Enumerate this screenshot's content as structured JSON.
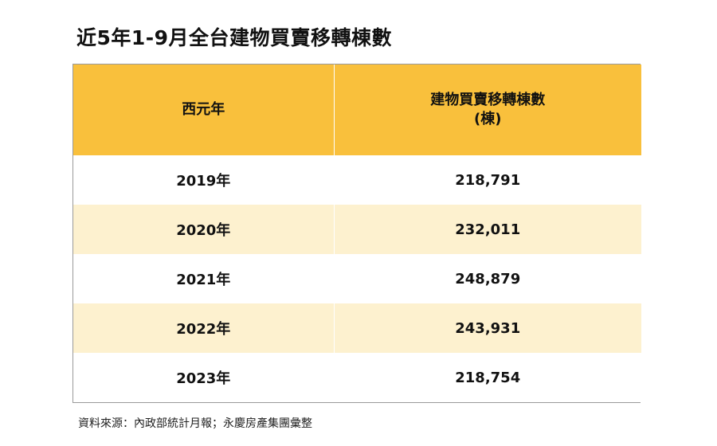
{
  "title": "近5年1-9月全台建物買賣移轉棟數",
  "table": {
    "headers": {
      "year": "西元年",
      "count_line1": "建物買賣移轉棟數",
      "count_line2": "(棟)"
    },
    "rows": [
      {
        "year": "2019年",
        "count": "218,791"
      },
      {
        "year": "2020年",
        "count": "232,011"
      },
      {
        "year": "2021年",
        "count": "248,879"
      },
      {
        "year": "2022年",
        "count": "243,931"
      },
      {
        "year": "2023年",
        "count": "218,754"
      }
    ]
  },
  "source": "資料來源：內政部統計月報；永慶房產集團彙整",
  "colors": {
    "header_bg": "#f9c03c",
    "stripe_bg": "#fdf1cf",
    "row_bg": "#ffffff"
  }
}
